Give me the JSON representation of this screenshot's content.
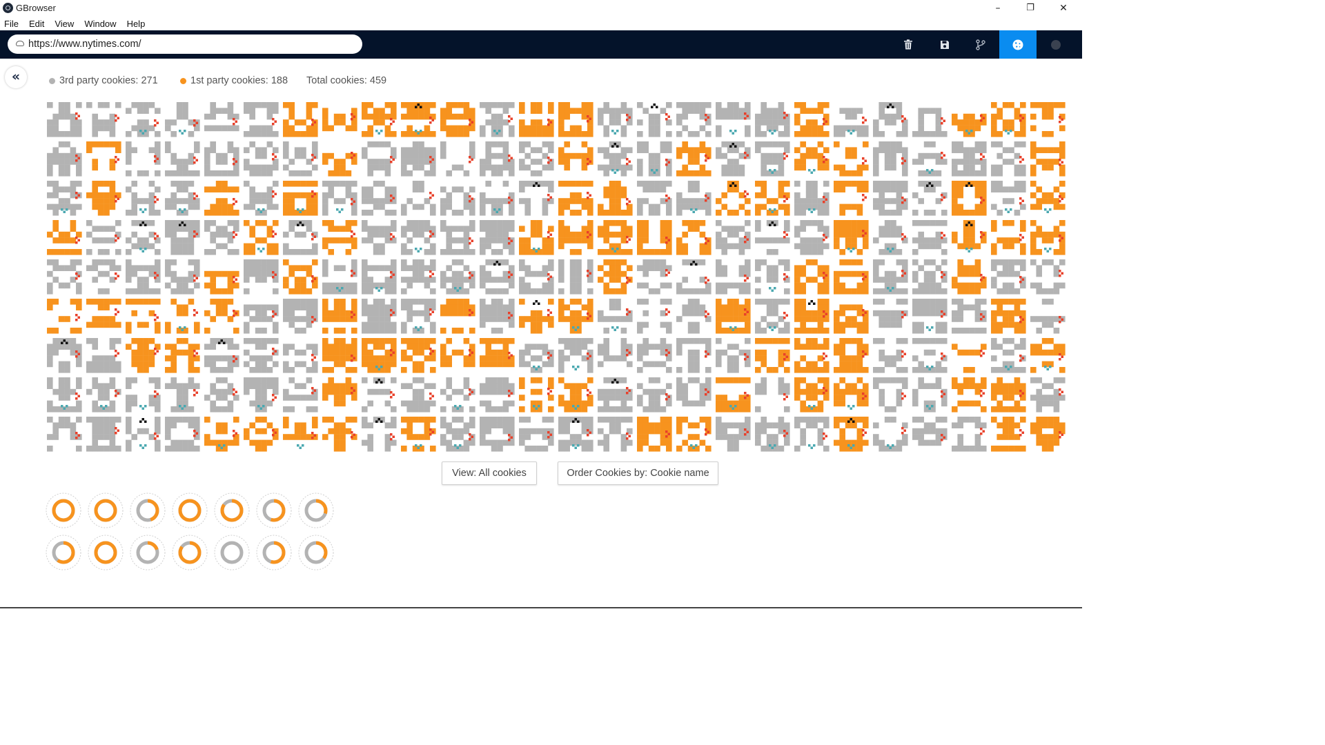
{
  "window": {
    "title": "GBrowser",
    "controls": {
      "minimize": "–",
      "restore": "❐",
      "close": "✕"
    }
  },
  "menu": [
    "File",
    "Edit",
    "View",
    "Window",
    "Help"
  ],
  "address_bar": {
    "url": "https://www.nytimes.com/",
    "icon": "cloud-icon"
  },
  "toolbar": {
    "buttons": [
      {
        "name": "trash-icon",
        "active": false
      },
      {
        "name": "save-icon",
        "active": false
      },
      {
        "name": "branch-icon",
        "active": false
      },
      {
        "name": "cookie-icon",
        "active": true
      },
      {
        "name": "record-icon",
        "active": false
      }
    ],
    "active_color": "#0a8cf0",
    "bar_color": "#04132a"
  },
  "stats": {
    "third_party": "3rd party cookies: 271",
    "first_party": "1st party cookies: 188",
    "total": "Total cookies: 459"
  },
  "colors": {
    "third_party": "#b3b3b3",
    "first_party": "#f7931e",
    "marker_red": "#e8402a",
    "marker_teal": "#4aa8b0",
    "marker_black": "#111111"
  },
  "cookie_grid": {
    "rows": 9,
    "cols": 26,
    "total": 459,
    "first_party": 188,
    "third_party": 271
  },
  "buttons": {
    "view": "View: All cookies",
    "order": "Order Cookies by: Cookie name"
  },
  "donut_values": [
    [
      1.0,
      1.0,
      0.45,
      1.0,
      0.85,
      0.55,
      0.3
    ],
    [
      0.6,
      1.0,
      0.2,
      0.85,
      0.0,
      0.55,
      0.35
    ]
  ]
}
